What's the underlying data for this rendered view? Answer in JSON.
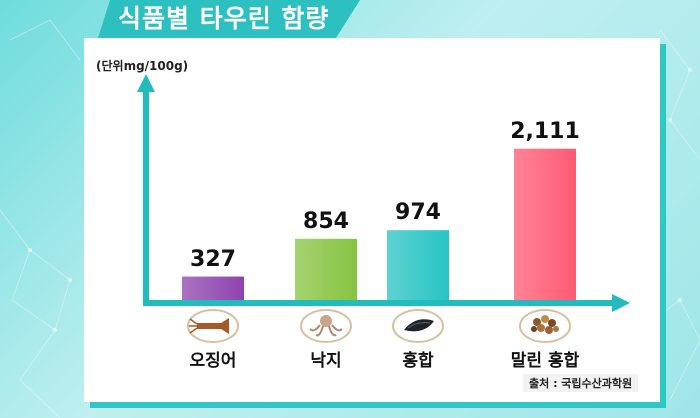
{
  "header": {
    "title": "식품별 타우린 함량"
  },
  "unit": "(단위mg/100g)",
  "source": "출처 : 국립수산과학원",
  "chart_data": {
    "type": "bar",
    "categories": [
      "오징어",
      "낙지",
      "홍합",
      "말린 홍합"
    ],
    "values": [
      327,
      854,
      974,
      2111
    ],
    "value_labels": [
      "327",
      "854",
      "974",
      "2,111"
    ],
    "ylim": [
      0,
      2400
    ],
    "colors": [
      "#8e44ad",
      "#86c341",
      "#27c3c3",
      "#ff5a72"
    ],
    "icons": [
      "squid-icon",
      "octopus-icon",
      "mussel-icon",
      "dried-mussel-icon"
    ],
    "grid": false
  }
}
